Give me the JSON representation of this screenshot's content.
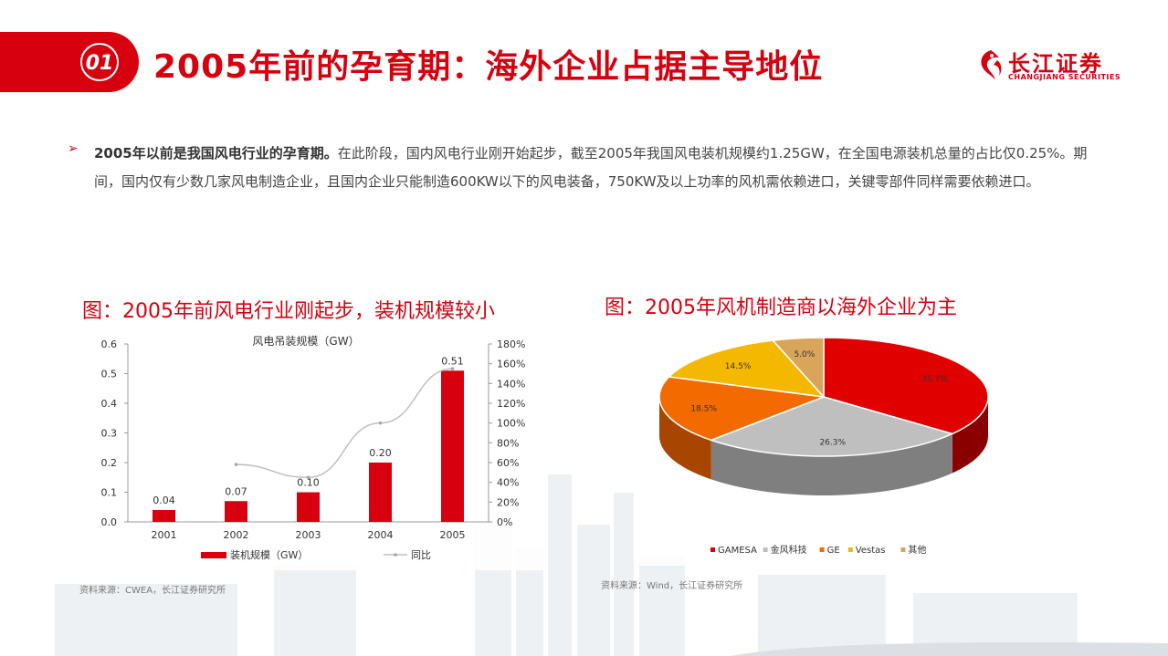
{
  "header": {
    "section_number": "01",
    "title": "2005年前的孕育期：海外企业占据主导地位",
    "logo_cn": "长江证券",
    "logo_en": "CHANGJIANG SECURITIES"
  },
  "body": {
    "bullet": "➢",
    "bold_lead": "2005年以前是我国风电行业的孕育期。",
    "text": "在此阶段，国内风电行业刚开始起步，截至2005年我国风电装机规模约1.25GW，在全国电源装机总量的占比仅0.25%。期间，国内仅有少数几家风电制造企业，且国内企业只能制造600KW以下的风电装备，750KW及以上功率的风机需依赖进口，关键零部件同样需要依赖进口。"
  },
  "left_figure": {
    "caption": "图：2005年前风电行业刚起步，装机规模较小",
    "source": "资料来源：CWEA，长江证券研究所"
  },
  "right_figure": {
    "caption": "图：2005年风机制造商以海外企业为主",
    "source": "资料来源：Wind，长江证券研究所"
  },
  "colors": {
    "brand_red": "#d7000f",
    "bar_red": "#d7000f",
    "line_gray": "#bfbfbf",
    "pie_gamesa": "#e00000",
    "pie_goldwind": "#bfbfbf",
    "pie_ge": "#f26a00",
    "pie_vestas": "#f5b800",
    "pie_other": "#d9a55a"
  },
  "chart_data": [
    {
      "type": "bar",
      "title": "风电吊装规模（GW）",
      "categories": [
        "2001",
        "2002",
        "2003",
        "2004",
        "2005"
      ],
      "series": [
        {
          "name": "装机规模（GW）",
          "values": [
            0.04,
            0.07,
            0.1,
            0.2,
            0.51
          ],
          "axis": "left",
          "data_labels": [
            "0.04",
            "0.07",
            "0.10",
            "0.20",
            "0.51"
          ]
        },
        {
          "name": "同比",
          "type": "line",
          "values": [
            null,
            0.58,
            0.45,
            1.0,
            1.55
          ],
          "axis": "right"
        }
      ],
      "ylim": [
        0,
        0.6
      ],
      "yticks": [
        "0.0",
        "0.1",
        "0.2",
        "0.3",
        "0.4",
        "0.5",
        "0.6"
      ],
      "y2lim": [
        0,
        1.8
      ],
      "y2ticks": [
        "0%",
        "20%",
        "40%",
        "60%",
        "80%",
        "100%",
        "120%",
        "140%",
        "160%",
        "180%"
      ],
      "grid": false,
      "legend": "bottom"
    },
    {
      "type": "pie",
      "title": "",
      "labels": [
        "GAMESA",
        "金风科技",
        "GE",
        "Vestas",
        "其他"
      ],
      "values": [
        35.7,
        26.3,
        18.5,
        14.5,
        5.0
      ],
      "data_labels": [
        "35.7%",
        "26.3%",
        "18.5%",
        "14.5%",
        "5.0%"
      ],
      "legend": "bottom"
    }
  ]
}
